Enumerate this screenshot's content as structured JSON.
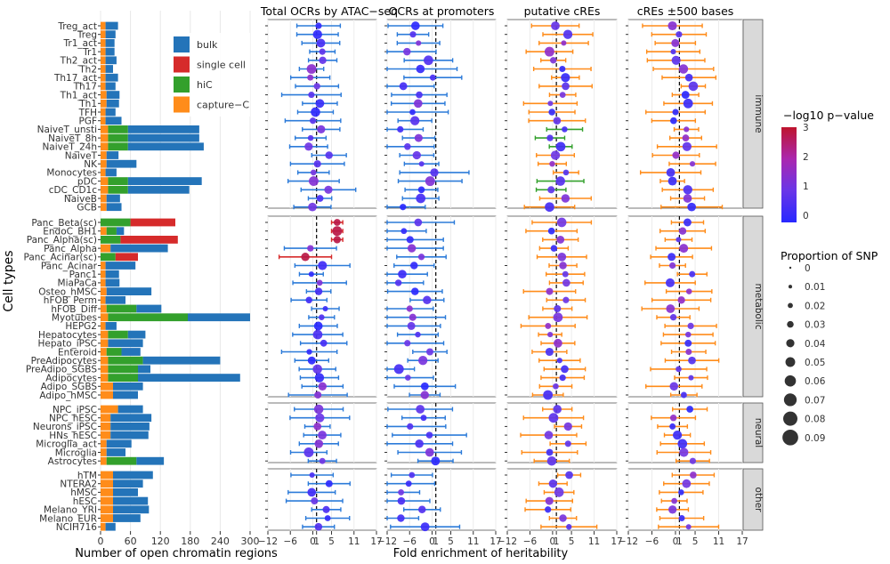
{
  "chart_data": {
    "type": "composite",
    "ylabel": "Cell types",
    "bar_panel": {
      "type": "stacked-bar-horizontal",
      "xlabel": "Number of open chromatin regions",
      "xticks": [
        0,
        60,
        120,
        180,
        240,
        300
      ],
      "xlim": [
        0,
        300
      ],
      "legend": [
        {
          "key": "bulk",
          "label": "bulk",
          "color": "#2474b9"
        },
        {
          "key": "single",
          "label": "single cell",
          "color": "#d62b2b"
        },
        {
          "key": "hic",
          "label": "hiC",
          "color": "#33a02c"
        },
        {
          "key": "cap",
          "label": "capture−C",
          "color": "#ff8c1a"
        }
      ]
    },
    "panels": [
      {
        "title": "Total OCRs by ATAC−seq",
        "xticks": [
          "−12",
          "−6",
          "0",
          "1",
          "5",
          "11",
          "17"
        ]
      },
      {
        "title": "OCRs at promoters",
        "xticks": [
          "−12",
          "−6",
          "0",
          "1",
          "5",
          "11",
          "17"
        ]
      },
      {
        "title": "putative cREs",
        "xticks": [
          "−12",
          "−6",
          "0",
          "1",
          "5",
          "11",
          "17"
        ]
      },
      {
        "title": "cREs ±500 bases",
        "xticks": [
          "−12",
          "−6",
          "0",
          "1",
          "5",
          "11",
          "17"
        ]
      }
    ],
    "enrichment_xlabel": "Fold enrichment of heritability",
    "color_legend": {
      "title": "−log10 p−value",
      "ticks": [
        "3",
        "2",
        "1",
        "0"
      ],
      "range": [
        0,
        3
      ]
    },
    "size_legend": {
      "title": "Proportion of SNP",
      "ticks": [
        "0",
        "0.01",
        "0.02",
        "0.03",
        "0.04",
        "0.05",
        "0.06",
        "0.07",
        "0.08",
        "0.09"
      ]
    },
    "groups": [
      {
        "name": "immune",
        "cells": [
          "Treg_act",
          "Treg",
          "Tr1_act",
          "Tr1",
          "Th2_act",
          "Th2",
          "Th17_act",
          "Th17",
          "Th1_act",
          "Th1",
          "TFH",
          "PGF",
          "NaiveT_unsti",
          "NaiveT_8h",
          "NaiveT_24h",
          "NaiveT",
          "NK",
          "Monocytes",
          "pDC",
          "cDC_CD1c",
          "NaiveB",
          "GCB"
        ]
      },
      {
        "name": "metabolic",
        "cells": [
          "Panc_Beta(sc)",
          "EndoC_BH1",
          "Panc_Alpha(sc)",
          "Panc_Alpha",
          "Panc_Acinar(sc)",
          "Panc_Acinar",
          "Panc1",
          "MiaPaCa",
          "Osteo_hMSC",
          "hFOB_Perm",
          "hFOB_Diff",
          "Myotubes",
          "HEPG2",
          "Hepatocytes",
          "Hepato_iPSC",
          "Enteroid",
          "PreAdipocytes",
          "PreAdipo_SGBS",
          "Adipocytes",
          "Adipo_SGBS",
          "Adipo_hMSC"
        ]
      },
      {
        "name": "neural",
        "cells": [
          "NPC_iPSC",
          "NPC_hESC",
          "Neurons_iPSC",
          "HNs_hESC",
          "Microglia_act",
          "Microglia",
          "Astrocytes"
        ]
      },
      {
        "name": "other",
        "cells": [
          "hTM",
          "NTERA2",
          "hMSC",
          "hESC",
          "Melano_YRI",
          "Melano_EUR",
          "NCIH716"
        ]
      }
    ],
    "bars": {
      "Treg_act": {
        "cap": 10,
        "bulk": 25
      },
      "Treg": {
        "cap": 10,
        "bulk": 20
      },
      "Tr1_act": {
        "cap": 10,
        "bulk": 18
      },
      "Tr1": {
        "cap": 10,
        "bulk": 18
      },
      "Th2_act": {
        "cap": 10,
        "bulk": 22
      },
      "Th2": {
        "cap": 10,
        "bulk": 15
      },
      "Th17_act": {
        "cap": 10,
        "bulk": 25
      },
      "Th17": {
        "cap": 10,
        "bulk": 20
      },
      "Th1_act": {
        "cap": 12,
        "bulk": 26
      },
      "Th1": {
        "cap": 12,
        "bulk": 25
      },
      "TFH": {
        "cap": 10,
        "bulk": 20
      },
      "PGF": {
        "cap": 10,
        "bulk": 32
      },
      "NaiveT_unsti": {
        "hic": 40,
        "cap": 15,
        "bulk": 143
      },
      "NaiveT_8h": {
        "hic": 40,
        "cap": 15,
        "bulk": 143
      },
      "NaiveT_24h": {
        "hic": 40,
        "cap": 15,
        "bulk": 152
      },
      "NaiveT": {
        "cap": 12,
        "bulk": 24
      },
      "NK": {
        "cap": 12,
        "bulk": 60
      },
      "Monocytes": {
        "cap": 10,
        "bulk": 22
      },
      "pDC": {
        "hic": 40,
        "cap": 15,
        "bulk": 148
      },
      "cDC_CD1c": {
        "hic": 40,
        "cap": 15,
        "bulk": 123
      },
      "NaiveB": {
        "cap": 12,
        "bulk": 27
      },
      "GCB": {
        "cap": 12,
        "bulk": 30
      },
      "Panc_Beta(sc)": {
        "hic": 60,
        "single": 90
      },
      "EndoC_BH1": {
        "hic": 20,
        "cap": 12,
        "bulk": 15
      },
      "Panc_Alpha(sc)": {
        "hic": 40,
        "single": 115
      },
      "Panc_Alpha": {
        "cap": 20,
        "bulk": 115
      },
      "Panc_Acinar(sc)": {
        "hic": 30,
        "single": 45
      },
      "Panc_Acinar": {
        "cap": 10,
        "bulk": 60
      },
      "Panc1": {
        "cap": 10,
        "bulk": 27
      },
      "MiaPaCa": {
        "cap": 10,
        "bulk": 28
      },
      "Osteo_hMSC": {
        "cap": 12,
        "bulk": 90
      },
      "hFOB_Perm": {
        "cap": 10,
        "bulk": 40
      },
      "hFOB_Diff": {
        "hic": 60,
        "cap": 12,
        "bulk": 50
      },
      "Myotubes": {
        "hic": 160,
        "cap": 15,
        "bulk": 125
      },
      "HEPG2": {
        "cap": 10,
        "bulk": 22
      },
      "Hepatocytes": {
        "hic": 40,
        "cap": 15,
        "bulk": 35
      },
      "Hepato_iPSC": {
        "cap": 15,
        "bulk": 70
      },
      "Enteroid": {
        "hic": 30,
        "cap": 12,
        "bulk": 38
      },
      "PreAdipocytes": {
        "hic": 70,
        "cap": 15,
        "bulk": 155
      },
      "PreAdipo_SGBS": {
        "hic": 60,
        "cap": 15,
        "bulk": 25
      },
      "Adipocytes": {
        "hic": 60,
        "cap": 15,
        "bulk": 205
      },
      "Adipo_SGBS": {
        "cap": 25,
        "bulk": 60
      },
      "Adipo_hMSC": {
        "cap": 25,
        "bulk": 50
      },
      "NPC_iPSC": {
        "cap": 35,
        "bulk": 50
      },
      "NPC_hESC": {
        "cap": 20,
        "bulk": 82
      },
      "Neurons_iPSC": {
        "cap": 20,
        "bulk": 78
      },
      "HNs_hESC": {
        "cap": 20,
        "bulk": 76
      },
      "Microglia_act": {
        "cap": 12,
        "bulk": 50
      },
      "Microglia": {
        "cap": 12,
        "bulk": 38
      },
      "Astrocytes": {
        "hic": 60,
        "cap": 12,
        "bulk": 55
      },
      "hTM": {
        "cap": 25,
        "bulk": 80
      },
      "NTERA2": {
        "cap": 25,
        "bulk": 60
      },
      "hMSC": {
        "cap": 25,
        "bulk": 50
      },
      "hESC": {
        "cap": 25,
        "bulk": 70
      },
      "Melano_YRI": {
        "cap": 25,
        "bulk": 72
      },
      "Melano_EUR": {
        "cap": 25,
        "bulk": 55
      },
      "NCIH716": {
        "cap": 10,
        "bulk": 20
      }
    }
  }
}
